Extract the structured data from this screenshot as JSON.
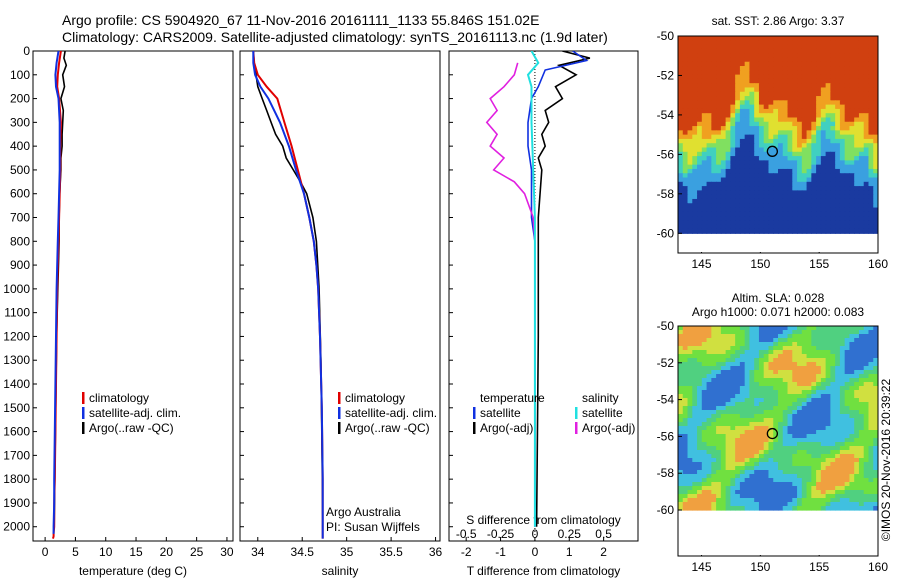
{
  "header": {
    "line1": "Argo profile: CS 5904920_67 11-Nov-2016 20161111_1133 55.846S 151.02E",
    "line2": "Climatology: CARS2009. Satellite-adjusted climatology: synTS_20161113.nc (1.9d later)"
  },
  "colors": {
    "climatology": "#e00000",
    "satellite": "#1030e0",
    "argo": "#000000",
    "sal_satellite": "#20e0e0",
    "sal_argo": "#e020e0"
  },
  "depth_ticks": [
    "0",
    "100",
    "200",
    "300",
    "400",
    "500",
    "600",
    "700",
    "800",
    "900",
    "1000",
    "1100",
    "1200",
    "1300",
    "1400",
    "1500",
    "1600",
    "1700",
    "1800",
    "1900",
    "2000"
  ],
  "chart_data": [
    {
      "type": "line",
      "panel": "temperature",
      "xlabel": "temperature (deg C)",
      "ylabel": "",
      "xlim": [
        -2,
        31
      ],
      "ylim": [
        2060,
        0
      ],
      "xticks": [
        "0",
        "5",
        "10",
        "15",
        "20",
        "25",
        "30"
      ],
      "legend": [
        "climatology",
        "satellite-adj. clim.",
        "Argo(..raw -QC)"
      ],
      "series": [
        {
          "name": "climatology",
          "x": [
            2.6,
            2.3,
            2.1,
            2.0,
            2.3,
            2.6,
            2.5,
            2.5,
            2.4,
            2.3,
            2.2,
            2.1,
            2.0,
            1.9,
            1.8,
            1.7,
            1.6,
            1.5,
            1.5,
            1.4,
            1.4,
            1.3
          ],
          "y": [
            0,
            50,
            100,
            150,
            200,
            300,
            400,
            500,
            600,
            700,
            800,
            900,
            1000,
            1200,
            1400,
            1600,
            1800,
            1900,
            2000,
            2030,
            2040,
            2050
          ]
        },
        {
          "name": "satellite-adj. clim.",
          "x": [
            2.2,
            1.9,
            1.7,
            1.8,
            2.2,
            2.4,
            2.4,
            2.4,
            2.3,
            2.2,
            2.1,
            2.0,
            1.9,
            1.8,
            1.7,
            1.6,
            1.5,
            1.5,
            1.4,
            1.4
          ],
          "y": [
            0,
            50,
            100,
            150,
            200,
            300,
            400,
            500,
            600,
            700,
            800,
            900,
            1000,
            1200,
            1400,
            1600,
            1800,
            1900,
            2000,
            2030
          ]
        },
        {
          "name": "Argo(..raw -QC)",
          "x": [
            3.3,
            3.1,
            3.5,
            2.9,
            3.2,
            2.6,
            3.0,
            2.9,
            2.8,
            2.8,
            2.6,
            2.6,
            2.4,
            2.3,
            2.3,
            2.1,
            1.9,
            1.8,
            1.7,
            1.6,
            1.5
          ],
          "y": [
            0,
            30,
            60,
            100,
            150,
            200,
            250,
            300,
            350,
            400,
            450,
            500,
            600,
            700,
            800,
            1000,
            1200,
            1400,
            1600,
            1800,
            2000
          ]
        }
      ]
    },
    {
      "type": "line",
      "panel": "salinity",
      "xlabel": "salinity",
      "ylabel": "",
      "xlim": [
        33.8,
        36.05
      ],
      "ylim": [
        2060,
        0
      ],
      "xticks": [
        "34",
        "34.5",
        "35",
        "35.5",
        "36"
      ],
      "legend": [
        "climatology",
        "satellite-adj. clim.",
        "Argo(..raw -QC)"
      ],
      "annotation": [
        "Argo Australia",
        "PI: Susan Wijffels"
      ],
      "series": [
        {
          "name": "climatology",
          "x": [
            33.95,
            33.96,
            34.0,
            34.1,
            34.22,
            34.3,
            34.38,
            34.45,
            34.52,
            34.58,
            34.63,
            34.66,
            34.68,
            34.7,
            34.72,
            34.73,
            34.73
          ],
          "y": [
            0,
            50,
            100,
            150,
            200,
            300,
            400,
            500,
            600,
            700,
            800,
            900,
            1000,
            1200,
            1500,
            1800,
            2050
          ]
        },
        {
          "name": "satellite-adj. clim.",
          "x": [
            33.95,
            33.95,
            33.97,
            34.03,
            34.12,
            34.25,
            34.35,
            34.43,
            34.52,
            34.58,
            34.63,
            34.66,
            34.68,
            34.7,
            34.72,
            34.73,
            34.73
          ],
          "y": [
            0,
            50,
            100,
            150,
            200,
            300,
            400,
            500,
            600,
            700,
            800,
            900,
            1000,
            1200,
            1500,
            1800,
            2050
          ]
        },
        {
          "name": "Argo(..raw -QC)",
          "x": [
            33.95,
            33.96,
            33.98,
            34.0,
            34.05,
            34.1,
            34.15,
            34.2,
            34.28,
            34.32,
            34.4,
            34.48,
            34.55,
            34.62,
            34.66,
            34.69,
            34.71,
            34.72,
            34.73
          ],
          "y": [
            0,
            50,
            100,
            150,
            200,
            250,
            300,
            350,
            400,
            450,
            500,
            550,
            600,
            700,
            800,
            1000,
            1300,
            1600,
            1950
          ]
        }
      ]
    },
    {
      "type": "line",
      "panel": "difference",
      "xlabel": "T difference from climatology",
      "xlabel_top": "S difference from climatology",
      "xlim": [
        -2.5,
        3.0
      ],
      "ylim": [
        2060,
        0
      ],
      "xticks": [
        "-2",
        "-1",
        "0",
        "1",
        "2"
      ],
      "xticks_s": [
        "-0.5",
        "-0.25",
        "0",
        "0.25",
        "0.5"
      ],
      "legend_temperature": [
        "temperature",
        "satellite",
        "Argo(-adj)"
      ],
      "legend_salinity": [
        "salinity",
        "satellite",
        "Argo(-adj)"
      ],
      "series": [
        {
          "name": "temperature satellite",
          "x": [
            1.1,
            1.5,
            0.3,
            0.1,
            -0.1,
            -0.2,
            -0.2,
            -0.1,
            -0.1,
            -0.1,
            0,
            0,
            0,
            0,
            0
          ],
          "y": [
            0,
            40,
            80,
            150,
            200,
            300,
            400,
            500,
            600,
            700,
            800,
            1000,
            1400,
            1800,
            2000
          ]
        },
        {
          "name": "temperature Argo(-adj)",
          "x": [
            0.8,
            1.6,
            0.7,
            1.2,
            0.6,
            0.8,
            0.3,
            0.4,
            0.2,
            0.3,
            0.1,
            0.2,
            0.1,
            0.1,
            0.05
          ],
          "y": [
            0,
            30,
            60,
            100,
            150,
            200,
            250,
            300,
            350,
            400,
            450,
            500,
            700,
            1200,
            2000
          ]
        },
        {
          "name": "salinity satellite",
          "x": [
            -0.1,
            0.1,
            -0.2,
            -0.1,
            -0.1,
            -0.1,
            -0.05,
            0,
            0,
            0,
            0
          ],
          "y": [
            0,
            50,
            100,
            150,
            200,
            300,
            500,
            700,
            1000,
            1500,
            2000
          ]
        },
        {
          "name": "salinity Argo(-adj)",
          "x": [
            -0.5,
            -0.6,
            -0.9,
            -1.3,
            -1.1,
            -1.4,
            -1.1,
            -1.3,
            -0.9,
            -1.2,
            -0.6,
            -0.3,
            -0.05,
            0
          ],
          "y": [
            50,
            100,
            150,
            200,
            250,
            300,
            350,
            400,
            450,
            500,
            550,
            600,
            700,
            800
          ]
        }
      ]
    },
    {
      "type": "heatmap",
      "panel": "sst_map",
      "title": "sat. SST: 2.86 Argo: 3.37",
      "xlim": [
        143,
        160
      ],
      "ylim": [
        -61,
        -50
      ],
      "xticks": [
        "145",
        "150",
        "155",
        "160"
      ],
      "yticks": [
        "-50",
        "-52",
        "-54",
        "-56",
        "-58",
        "-60"
      ],
      "marker": {
        "lon": 151.02,
        "lat": -55.846
      }
    },
    {
      "type": "heatmap",
      "panel": "sla_map",
      "title": "Altim. SLA: 0.028",
      "subtitle": "Argo h1000: 0.071 h2000: 0.083",
      "xlim": [
        143,
        160
      ],
      "ylim": [
        -62.5,
        -50
      ],
      "xticks": [
        "145",
        "150",
        "155",
        "160"
      ],
      "yticks": [
        "-50",
        "-52",
        "-54",
        "-56",
        "-58",
        "-60"
      ],
      "marker": {
        "lon": 151.02,
        "lat": -55.846
      }
    }
  ],
  "credit": "©IMOS 20-Nov-2016 20:39:22"
}
